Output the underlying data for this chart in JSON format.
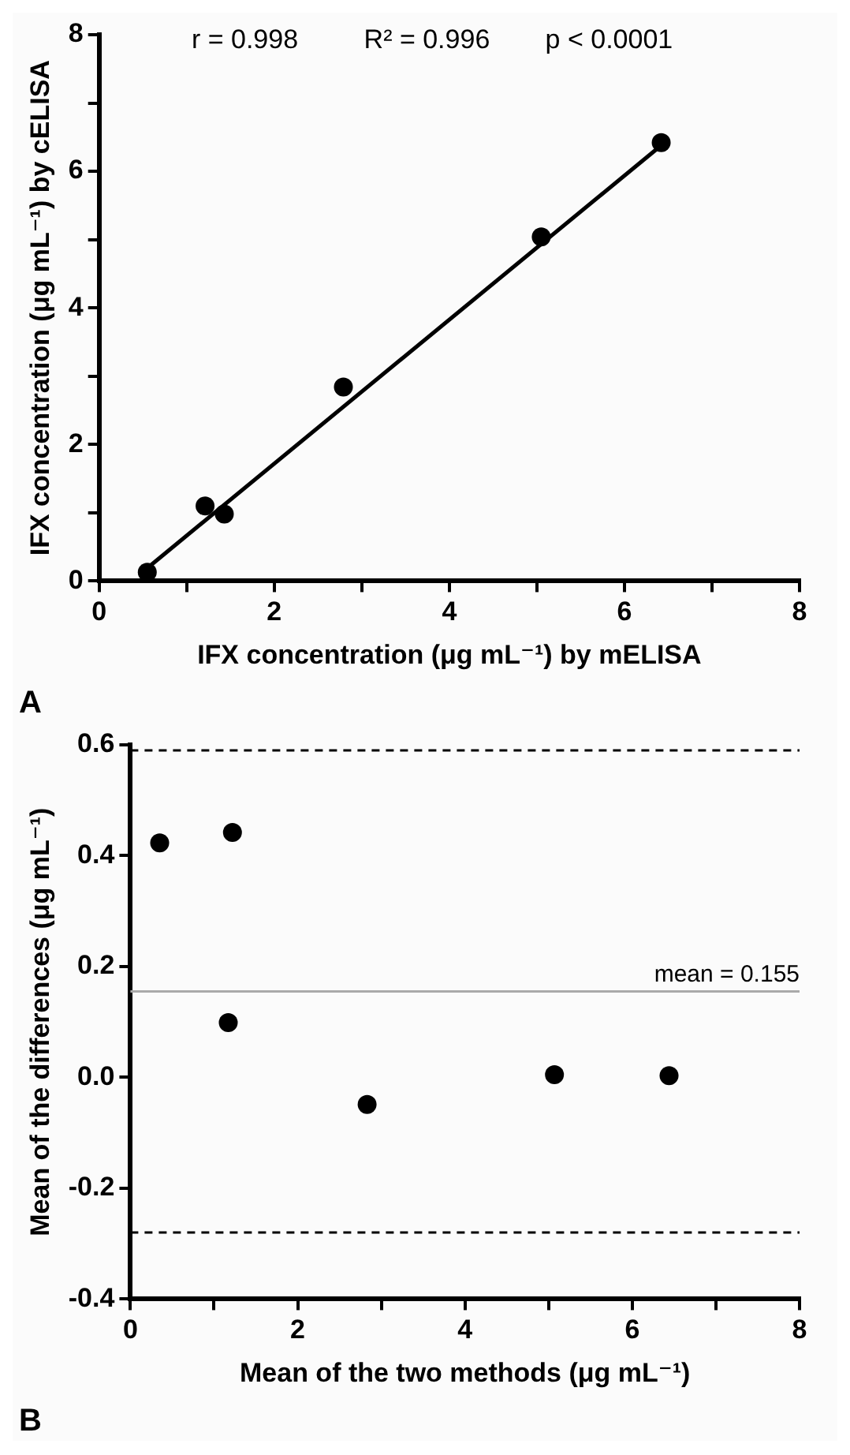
{
  "chart_data": [
    {
      "type": "scatter",
      "title": "A",
      "xlabel": "IFX concentration (μg mL⁻¹) by mELISA",
      "ylabel": "IFX concentration (μg mL⁻¹) by cELISA",
      "annotations": [
        "r = 0.998",
        "R² = 0.996",
        "p < 0.0001"
      ],
      "xlim": [
        0,
        8
      ],
      "ylim": [
        0,
        8
      ],
      "xticks": [
        0,
        {
          "value": 1,
          "label": null
        },
        2,
        {
          "value": 3,
          "label": null
        },
        4,
        {
          "value": 5,
          "label": null
        },
        6,
        {
          "value": 7,
          "label": null
        },
        8
      ],
      "yticks": [
        0,
        {
          "value": 1,
          "label": null
        },
        2,
        {
          "value": 3,
          "label": null
        },
        4,
        {
          "value": 5,
          "label": null
        },
        6,
        {
          "value": 7,
          "label": null
        },
        8
      ],
      "grid": false,
      "legend": false,
      "marker": "circle",
      "series": [
        {
          "color": "#000000",
          "x": [
            0.55,
            1.21,
            1.43,
            2.79,
            5.05,
            6.42
          ],
          "values": [
            0.13,
            1.1,
            0.98,
            2.84,
            5.04,
            6.42
          ]
        },
        {
          "type": "line",
          "marker": "none",
          "color": "#000000",
          "x": [
            0.55,
            6.42
          ],
          "values": [
            0.19,
            6.38
          ]
        }
      ]
    },
    {
      "type": "scatter",
      "title": "B",
      "xlabel": "Mean of the two methods (μg mL⁻¹)",
      "ylabel": "Mean of the differences (μg mL⁻¹)",
      "xlim": [
        0,
        8
      ],
      "ylim": [
        -0.4,
        0.6
      ],
      "xticks": [
        0,
        {
          "value": 1,
          "label": null
        },
        2,
        {
          "value": 3,
          "label": null
        },
        4,
        {
          "value": 5,
          "label": null
        },
        6,
        {
          "value": 7,
          "label": null
        },
        8
      ],
      "yticks": [
        {
          "value": -0.4,
          "label": "-0.4"
        },
        {
          "value": -0.2,
          "label": "-0.2"
        },
        {
          "value": 0,
          "label": "0.0"
        },
        {
          "value": 0.2,
          "label": "0.2"
        },
        {
          "value": 0.4,
          "label": "0.4"
        },
        {
          "value": 0.6,
          "label": "0.6"
        }
      ],
      "grid": false,
      "legend": false,
      "marker": "circle",
      "ref_lines": [
        {
          "axis": "y",
          "value": 0.59,
          "color": "#000000",
          "line_style": "dashed"
        },
        {
          "axis": "y",
          "value": 0.155,
          "label": "mean = 0.155",
          "color": "#aaaaaa",
          "line_style": "solid"
        },
        {
          "axis": "y",
          "value": -0.28,
          "color": "#000000",
          "line_style": "dashed"
        }
      ],
      "series": [
        {
          "color": "#000000",
          "x": [
            0.35,
            1.22,
            1.17,
            2.83,
            5.07,
            6.44
          ],
          "values": [
            0.423,
            0.442,
            0.099,
            -0.049,
            0.005,
            0.003
          ]
        }
      ]
    }
  ]
}
